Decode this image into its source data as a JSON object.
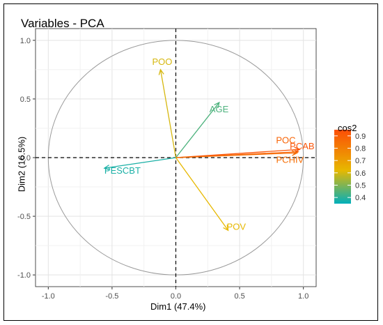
{
  "chart_data": {
    "type": "scatter",
    "title": "Variables - PCA",
    "xlabel": "Dim1 (47.4%)",
    "ylabel": "Dim2 (16.5%)",
    "xlim": [
      -1.0,
      1.0
    ],
    "ylim": [
      -1.0,
      1.0
    ],
    "x_ticks": [
      "-1.0",
      "-0.5",
      "0.0",
      "0.5",
      "1.0"
    ],
    "y_ticks": [
      "1.0",
      "0.5",
      "0.0",
      "-0.5",
      "-1.0"
    ],
    "grid": true,
    "unit_circle": true,
    "variables": [
      {
        "name": "POO",
        "x": -0.12,
        "y": 0.75,
        "cos2": 0.6
      },
      {
        "name": "AGE",
        "x": 0.34,
        "y": 0.47,
        "cos2": 0.44
      },
      {
        "name": "POC",
        "x": 0.96,
        "y": 0.05,
        "cos2": 0.88
      },
      {
        "name": "PCAB",
        "x": 0.97,
        "y": 0.07,
        "cos2": 0.93
      },
      {
        "name": "PCHIV",
        "x": 0.95,
        "y": 0.04,
        "cos2": 0.85
      },
      {
        "name": "PESCBT",
        "x": -0.56,
        "y": -0.09,
        "cos2": 0.38
      },
      {
        "name": "POV",
        "x": 0.41,
        "y": -0.62,
        "cos2": 0.62
      }
    ],
    "legend": {
      "title": "cos2",
      "position": "right",
      "ticks": [
        "0.9",
        "0.8",
        "0.7",
        "0.6",
        "0.5",
        "0.4"
      ],
      "min": 0.35,
      "max": 0.95,
      "colors": [
        "#00AFBB",
        "#E7B800",
        "#FC4E07"
      ]
    }
  }
}
